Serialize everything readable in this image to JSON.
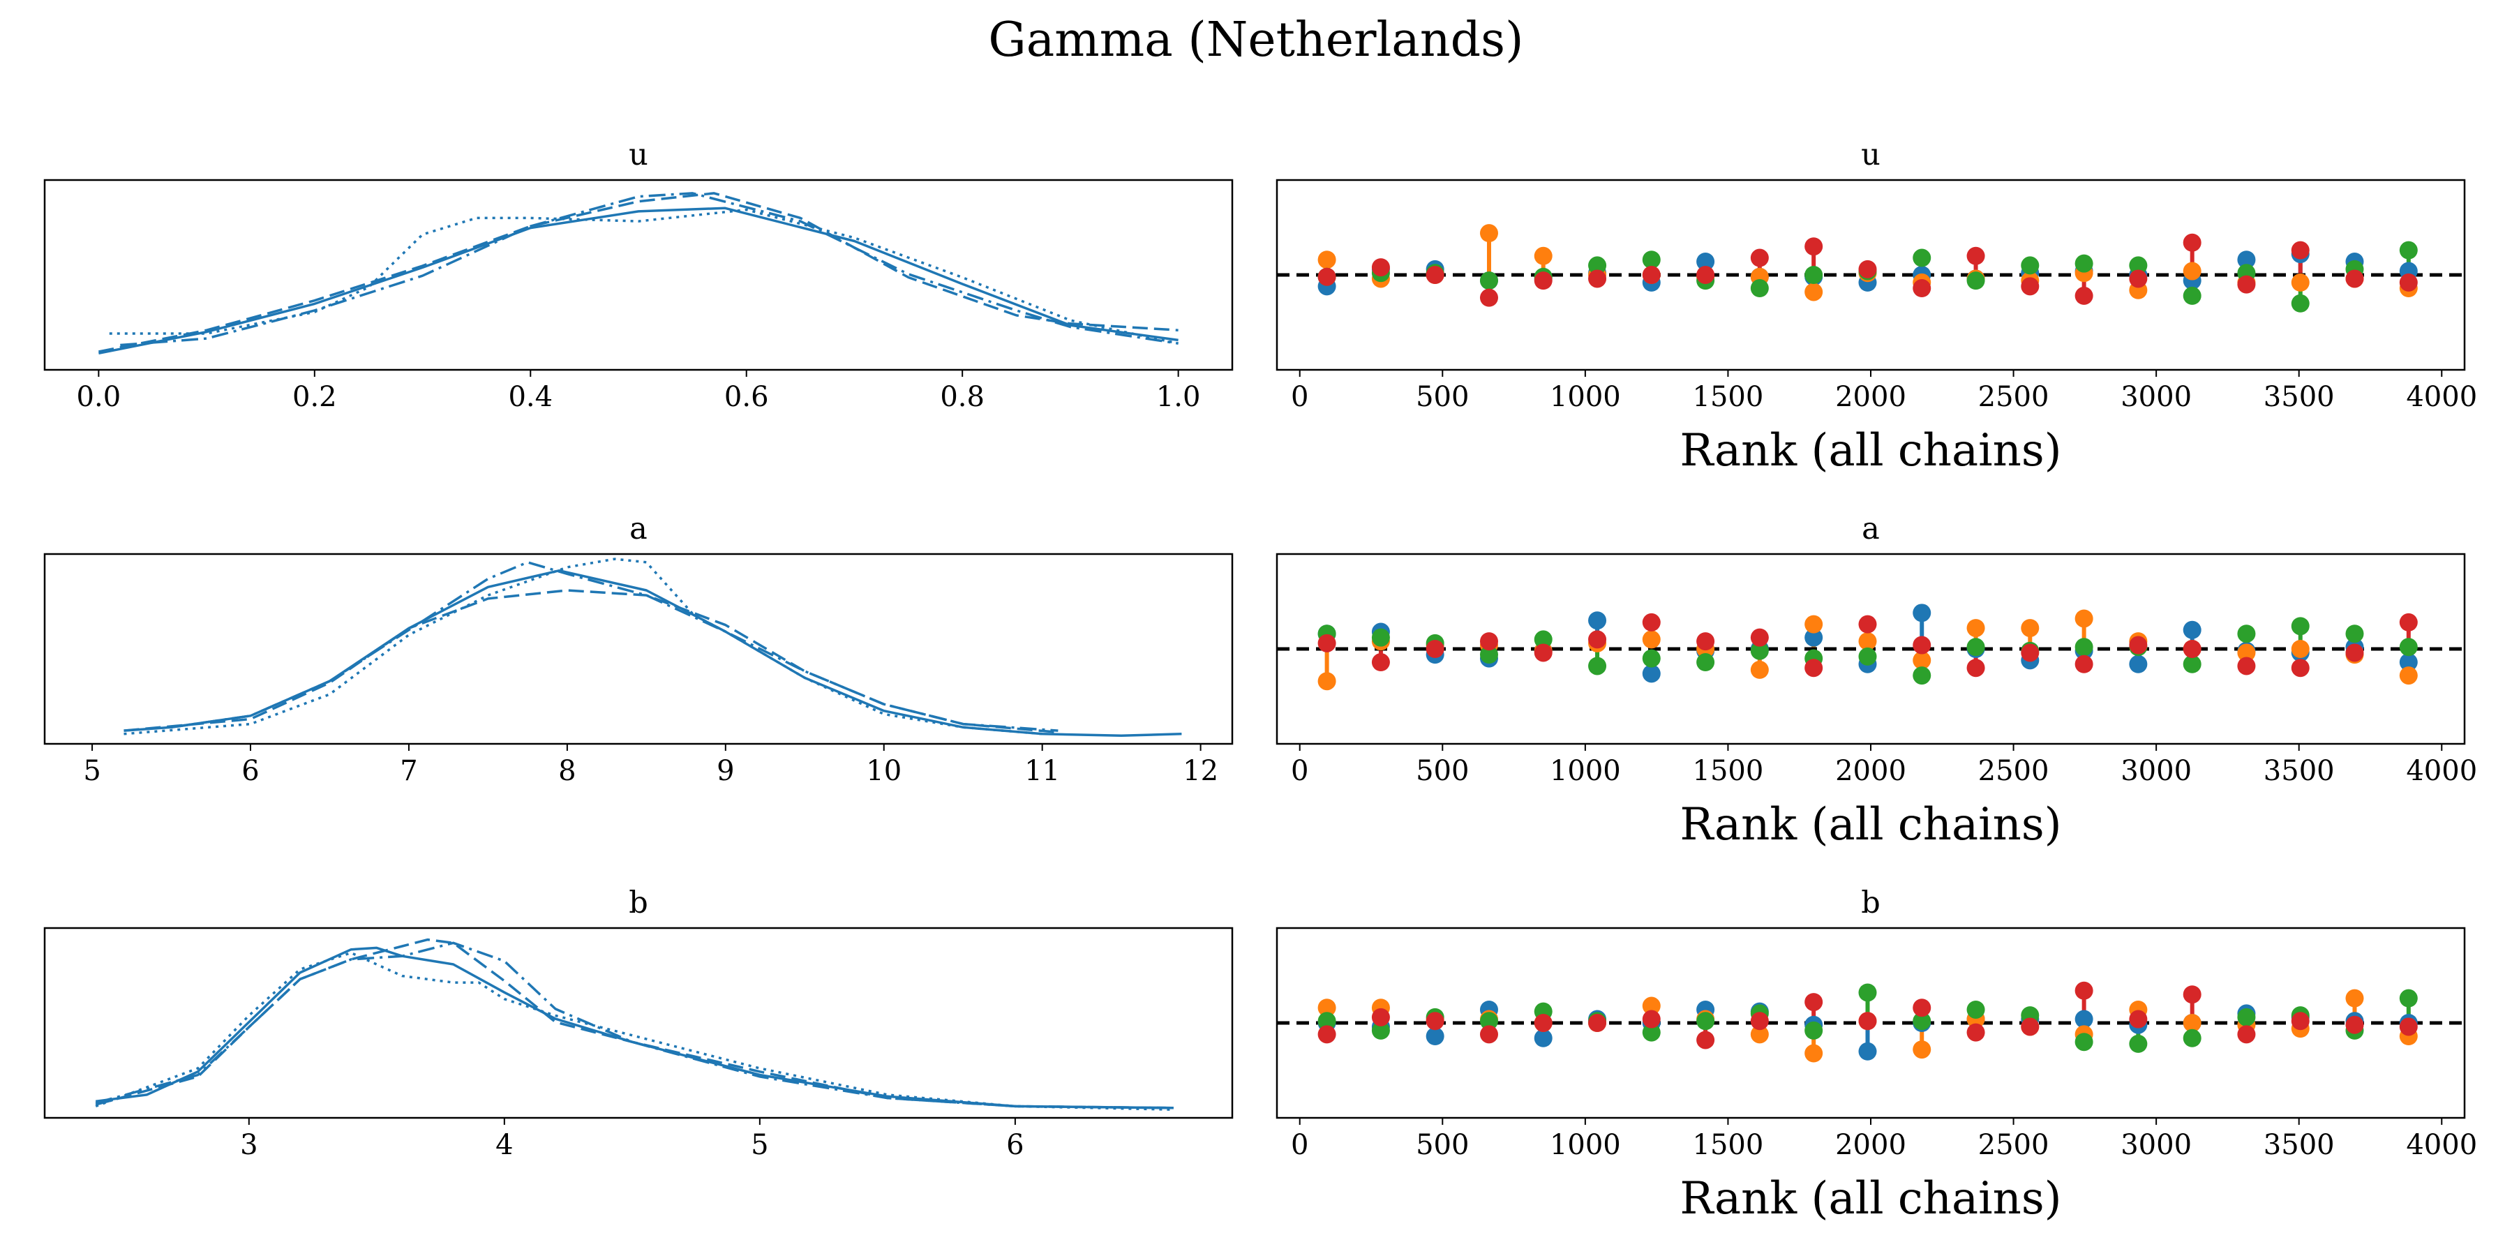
{
  "figure": {
    "title": "Gamma (Netherlands)"
  },
  "colors": {
    "density_line": "#1f77b4",
    "chain_colors": [
      "#1f77b4",
      "#ff7f0e",
      "#2ca02c",
      "#d62728"
    ],
    "reference_line": "#000000"
  },
  "chart_data": [
    {
      "type": "line",
      "title": "u",
      "xlabel": "",
      "ylabel": "",
      "xlim": [
        -0.05,
        1.05
      ],
      "ylim": [
        0,
        1.15
      ],
      "xticks": [
        0.0,
        0.2,
        0.4,
        0.6,
        0.8,
        1.0
      ],
      "tick_labels": [
        "0.0",
        "0.2",
        "0.4",
        "0.6",
        "0.8",
        "1.0"
      ],
      "yticks_shown": false,
      "series": [
        {
          "dash": "solid",
          "x": [
            0.0,
            0.1,
            0.2,
            0.3,
            0.4,
            0.5,
            0.58,
            0.7,
            0.8,
            0.9,
            1.0
          ],
          "y": [
            0.1,
            0.23,
            0.4,
            0.62,
            0.86,
            0.96,
            0.98,
            0.78,
            0.52,
            0.27,
            0.18
          ]
        },
        {
          "dash": "dashed",
          "x": [
            0.0,
            0.1,
            0.2,
            0.3,
            0.4,
            0.5,
            0.57,
            0.65,
            0.75,
            0.85,
            0.9,
            1.0
          ],
          "y": [
            0.11,
            0.24,
            0.42,
            0.63,
            0.87,
            1.02,
            1.07,
            0.92,
            0.56,
            0.33,
            0.28,
            0.24
          ]
        },
        {
          "dash": "dashdot",
          "x": [
            0.02,
            0.1,
            0.2,
            0.3,
            0.4,
            0.5,
            0.55,
            0.65,
            0.75,
            0.85,
            0.9,
            1.0
          ],
          "y": [
            0.15,
            0.19,
            0.36,
            0.57,
            0.87,
            1.05,
            1.07,
            0.9,
            0.58,
            0.36,
            0.26,
            0.16
          ]
        },
        {
          "dash": "dotted",
          "x": [
            0.01,
            0.1,
            0.2,
            0.25,
            0.3,
            0.35,
            0.4,
            0.5,
            0.6,
            0.7,
            0.8,
            0.9,
            1.0
          ],
          "y": [
            0.22,
            0.22,
            0.35,
            0.5,
            0.82,
            0.92,
            0.92,
            0.9,
            0.97,
            0.8,
            0.56,
            0.3,
            0.16
          ]
        }
      ]
    },
    {
      "type": "scatter",
      "title": "u",
      "xlabel": "Rank (all chains)",
      "xlim": [
        -80,
        4080
      ],
      "ylim": [
        0,
        1
      ],
      "xticks": [
        0,
        500,
        1000,
        1500,
        2000,
        2500,
        3000,
        3500,
        4000
      ],
      "tick_labels": [
        "0",
        "500",
        "1000",
        "1500",
        "2000",
        "2500",
        "3000",
        "3500",
        "4000"
      ],
      "yticks_shown": false,
      "reference_y": 0.5,
      "x": [
        95,
        284,
        474,
        663,
        853,
        1042,
        1232,
        1421,
        1611,
        1800,
        1989,
        2179,
        2368,
        2558,
        2747,
        2937,
        3126,
        3316,
        3505,
        3695,
        3884
      ],
      "series": [
        {
          "chain": 0,
          "values": [
            0.44,
            0.53,
            0.53,
            0.47,
            0.48,
            0.51,
            0.46,
            0.57,
            0.49,
            0.49,
            0.46,
            0.5,
            0.48,
            0.51,
            0.52,
            0.5,
            0.47,
            0.58,
            0.61,
            0.57,
            0.52
          ]
        },
        {
          "chain": 1,
          "values": [
            0.58,
            0.48,
            0.5,
            0.72,
            0.6,
            0.5,
            0.5,
            0.49,
            0.49,
            0.41,
            0.51,
            0.46,
            0.48,
            0.47,
            0.51,
            0.42,
            0.52,
            0.46,
            0.46,
            0.48,
            0.43
          ]
        },
        {
          "chain": 2,
          "values": [
            0.49,
            0.51,
            0.51,
            0.47,
            0.49,
            0.55,
            0.58,
            0.47,
            0.43,
            0.5,
            0.52,
            0.59,
            0.47,
            0.55,
            0.56,
            0.55,
            0.39,
            0.51,
            0.35,
            0.53,
            0.63
          ]
        },
        {
          "chain": 3,
          "values": [
            0.49,
            0.54,
            0.5,
            0.38,
            0.47,
            0.48,
            0.5,
            0.5,
            0.59,
            0.65,
            0.53,
            0.43,
            0.6,
            0.44,
            0.39,
            0.48,
            0.67,
            0.45,
            0.63,
            0.48,
            0.46
          ]
        }
      ]
    },
    {
      "type": "line",
      "title": "a",
      "xlabel": "",
      "ylabel": "",
      "xlim": [
        4.7,
        12.2
      ],
      "ylim": [
        0,
        1.15
      ],
      "xticks": [
        5,
        6,
        7,
        8,
        9,
        10,
        11,
        12
      ],
      "tick_labels": [
        "5",
        "6",
        "7",
        "8",
        "9",
        "10",
        "11",
        "12"
      ],
      "yticks_shown": false,
      "series": [
        {
          "dash": "solid",
          "x": [
            5.2,
            5.5,
            6.0,
            6.5,
            7.0,
            7.5,
            7.95,
            8.5,
            9.0,
            9.5,
            10.0,
            10.5,
            11.0,
            11.5,
            11.88
          ],
          "y": [
            0.08,
            0.1,
            0.17,
            0.38,
            0.7,
            0.95,
            1.05,
            0.93,
            0.68,
            0.4,
            0.2,
            0.1,
            0.06,
            0.05,
            0.06
          ]
        },
        {
          "dash": "dashed",
          "x": [
            5.2,
            6.0,
            6.5,
            7.0,
            7.5,
            8.0,
            8.5,
            9.0,
            9.5,
            10.0,
            10.5,
            11.1
          ],
          "y": [
            0.08,
            0.15,
            0.37,
            0.7,
            0.88,
            0.93,
            0.9,
            0.72,
            0.44,
            0.24,
            0.12,
            0.07
          ]
        },
        {
          "dash": "dashdot",
          "x": [
            5.5,
            6.0,
            6.5,
            7.0,
            7.5,
            7.75,
            8.0,
            8.5,
            9.0,
            9.5,
            10.0,
            10.5,
            11.1
          ],
          "y": [
            0.1,
            0.17,
            0.38,
            0.69,
            1.0,
            1.1,
            1.03,
            0.9,
            0.68,
            0.44,
            0.24,
            0.12,
            0.08
          ]
        },
        {
          "dash": "dotted",
          "x": [
            5.2,
            6.0,
            6.5,
            7.0,
            7.5,
            8.0,
            8.3,
            8.5,
            8.8,
            9.0,
            9.5,
            10.0,
            10.5,
            11.0
          ],
          "y": [
            0.06,
            0.12,
            0.3,
            0.66,
            0.9,
            1.07,
            1.12,
            1.1,
            0.78,
            0.68,
            0.4,
            0.18,
            0.1,
            0.06
          ]
        }
      ]
    },
    {
      "type": "scatter",
      "title": "a",
      "xlabel": "Rank (all chains)",
      "xlim": [
        -80,
        4080
      ],
      "ylim": [
        0,
        1
      ],
      "xticks": [
        0,
        500,
        1000,
        1500,
        2000,
        2500,
        3000,
        3500,
        4000
      ],
      "tick_labels": [
        "0",
        "500",
        "1000",
        "1500",
        "2000",
        "2500",
        "3000",
        "3500",
        "4000"
      ],
      "yticks_shown": false,
      "reference_y": 0.5,
      "x": [
        95,
        284,
        474,
        663,
        853,
        1042,
        1232,
        1421,
        1611,
        1800,
        1989,
        2179,
        2368,
        2558,
        2747,
        2937,
        3126,
        3316,
        3505,
        3695,
        3884
      ],
      "series": [
        {
          "chain": 0,
          "values": [
            0.58,
            0.59,
            0.47,
            0.45,
            0.49,
            0.65,
            0.37,
            0.49,
            0.5,
            0.56,
            0.42,
            0.69,
            0.5,
            0.44,
            0.49,
            0.42,
            0.6,
            0.49,
            0.48,
            0.51,
            0.43
          ]
        },
        {
          "chain": 1,
          "values": [
            0.33,
            0.54,
            0.52,
            0.52,
            0.49,
            0.53,
            0.55,
            0.5,
            0.39,
            0.63,
            0.54,
            0.44,
            0.61,
            0.61,
            0.66,
            0.54,
            0.5,
            0.48,
            0.5,
            0.47,
            0.36
          ]
        },
        {
          "chain": 2,
          "values": [
            0.58,
            0.56,
            0.53,
            0.47,
            0.55,
            0.41,
            0.45,
            0.43,
            0.49,
            0.45,
            0.46,
            0.36,
            0.51,
            0.49,
            0.51,
            0.51,
            0.42,
            0.58,
            0.62,
            0.58,
            0.51
          ]
        },
        {
          "chain": 3,
          "values": [
            0.53,
            0.43,
            0.5,
            0.54,
            0.48,
            0.55,
            0.64,
            0.54,
            0.56,
            0.4,
            0.63,
            0.52,
            0.4,
            0.48,
            0.42,
            0.52,
            0.5,
            0.41,
            0.4,
            0.48,
            0.64
          ]
        }
      ]
    },
    {
      "type": "line",
      "title": "b",
      "xlabel": "",
      "ylabel": "",
      "xlim": [
        2.2,
        6.85
      ],
      "ylim": [
        0,
        1.15
      ],
      "xticks": [
        3,
        4,
        5,
        6
      ],
      "tick_labels": [
        "3",
        "4",
        "5",
        "6"
      ],
      "yticks_shown": false,
      "series": [
        {
          "dash": "solid",
          "x": [
            2.4,
            2.6,
            2.8,
            3.0,
            3.2,
            3.4,
            3.5,
            3.6,
            3.8,
            4.0,
            4.2,
            4.5,
            5.0,
            5.5,
            6.0,
            6.62
          ],
          "y": [
            0.1,
            0.14,
            0.28,
            0.58,
            0.88,
            1.02,
            1.03,
            0.98,
            0.93,
            0.76,
            0.6,
            0.46,
            0.26,
            0.13,
            0.07,
            0.06
          ]
        },
        {
          "dash": "dashed",
          "x": [
            2.4,
            2.8,
            3.0,
            3.2,
            3.4,
            3.6,
            3.7,
            3.8,
            4.0,
            4.2,
            4.5,
            5.0,
            5.5,
            6.0,
            6.62
          ],
          "y": [
            0.08,
            0.25,
            0.55,
            0.84,
            0.96,
            1.04,
            1.08,
            1.06,
            0.83,
            0.58,
            0.46,
            0.28,
            0.12,
            0.07,
            0.06
          ]
        },
        {
          "dash": "dashdot",
          "x": [
            2.4,
            2.8,
            3.0,
            3.2,
            3.4,
            3.6,
            3.8,
            4.0,
            4.2,
            4.5,
            5.0,
            5.5,
            6.0,
            6.62
          ],
          "y": [
            0.09,
            0.26,
            0.55,
            0.84,
            0.96,
            0.98,
            1.06,
            0.95,
            0.66,
            0.46,
            0.25,
            0.12,
            0.07,
            0.06
          ]
        },
        {
          "dash": "dotted",
          "x": [
            2.4,
            2.8,
            3.0,
            3.2,
            3.4,
            3.6,
            3.8,
            3.9,
            4.0,
            4.2,
            4.5,
            5.0,
            5.5,
            6.0,
            6.62
          ],
          "y": [
            0.07,
            0.3,
            0.62,
            0.9,
            1.0,
            0.86,
            0.82,
            0.82,
            0.72,
            0.62,
            0.5,
            0.3,
            0.14,
            0.07,
            0.05
          ]
        }
      ]
    },
    {
      "type": "scatter",
      "title": "b",
      "xlabel": "Rank (all chains)",
      "xlim": [
        -80,
        4080
      ],
      "ylim": [
        0,
        1
      ],
      "xticks": [
        0,
        500,
        1000,
        1500,
        2000,
        2500,
        3000,
        3500,
        4000
      ],
      "tick_labels": [
        "0",
        "500",
        "1000",
        "1500",
        "2000",
        "2500",
        "3000",
        "3500",
        "4000"
      ],
      "yticks_shown": false,
      "reference_y": 0.5,
      "x": [
        95,
        284,
        474,
        663,
        853,
        1042,
        1232,
        1421,
        1611,
        1800,
        1989,
        2179,
        2368,
        2558,
        2747,
        2937,
        3126,
        3316,
        3505,
        3695,
        3884
      ],
      "series": [
        {
          "chain": 0,
          "values": [
            0.5,
            0.48,
            0.43,
            0.57,
            0.42,
            0.52,
            0.5,
            0.57,
            0.56,
            0.49,
            0.35,
            0.5,
            0.52,
            0.52,
            0.52,
            0.49,
            0.5,
            0.55,
            0.53,
            0.51,
            0.5
          ]
        },
        {
          "chain": 1,
          "values": [
            0.58,
            0.58,
            0.52,
            0.52,
            0.5,
            0.5,
            0.59,
            0.52,
            0.44,
            0.34,
            0.51,
            0.36,
            0.52,
            0.48,
            0.44,
            0.57,
            0.5,
            0.49,
            0.47,
            0.63,
            0.43
          ]
        },
        {
          "chain": 2,
          "values": [
            0.51,
            0.46,
            0.53,
            0.51,
            0.56,
            0.51,
            0.45,
            0.51,
            0.55,
            0.46,
            0.66,
            0.51,
            0.57,
            0.54,
            0.4,
            0.39,
            0.42,
            0.53,
            0.54,
            0.46,
            0.63
          ]
        },
        {
          "chain": 3,
          "values": [
            0.44,
            0.53,
            0.51,
            0.44,
            0.5,
            0.5,
            0.52,
            0.41,
            0.51,
            0.61,
            0.51,
            0.58,
            0.45,
            0.48,
            0.67,
            0.52,
            0.65,
            0.44,
            0.51,
            0.49,
            0.48
          ]
        }
      ]
    }
  ]
}
